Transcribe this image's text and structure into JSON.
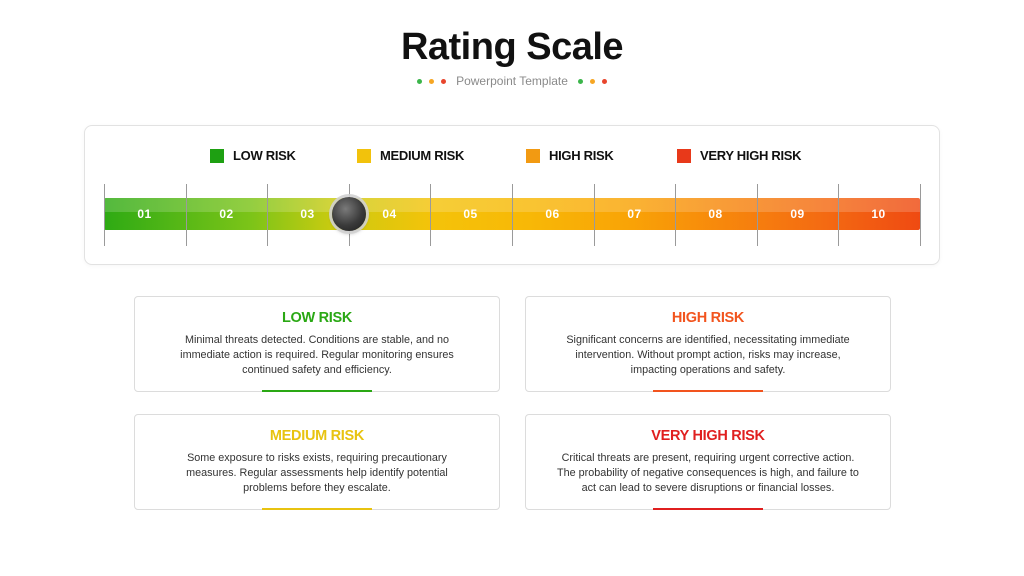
{
  "header": {
    "title": "Rating Scale",
    "subtitle": "Powerpoint Template",
    "dot_colors": [
      "#3bb54a",
      "#f6a623",
      "#e8452c"
    ]
  },
  "legend": [
    {
      "label": "LOW RISK",
      "color": "#1ea012"
    },
    {
      "label": "MEDIUM RISK",
      "color": "#f2c20c"
    },
    {
      "label": "HIGH RISK",
      "color": "#f29a12"
    },
    {
      "label": "VERY HIGH RISK",
      "color": "#e8391a"
    }
  ],
  "scale": {
    "segments": [
      "01",
      "02",
      "03",
      "04",
      "05",
      "06",
      "07",
      "08",
      "09",
      "10"
    ],
    "current_value": 3.5
  },
  "cards": [
    {
      "title": "LOW RISK",
      "color": "#2aa814",
      "text": "Minimal threats detected. Conditions are stable, and no immediate action is required. Regular monitoring ensures continued safety and efficiency."
    },
    {
      "title": "HIGH RISK",
      "color": "#f2541e",
      "text": "Significant concerns are identified, necessitating immediate intervention. Without prompt action, risks may increase, impacting operations and safety."
    },
    {
      "title": "MEDIUM RISK",
      "color": "#e8c310",
      "text": "Some exposure to risks exists, requiring precautionary measures. Regular assessments help identify potential problems before they escalate."
    },
    {
      "title": "VERY HIGH RISK",
      "color": "#e01f1f",
      "text": "Critical threats are present, requiring urgent corrective action. The probability of negative consequences is high, and failure to act can lead to severe disruptions or financial losses."
    }
  ]
}
